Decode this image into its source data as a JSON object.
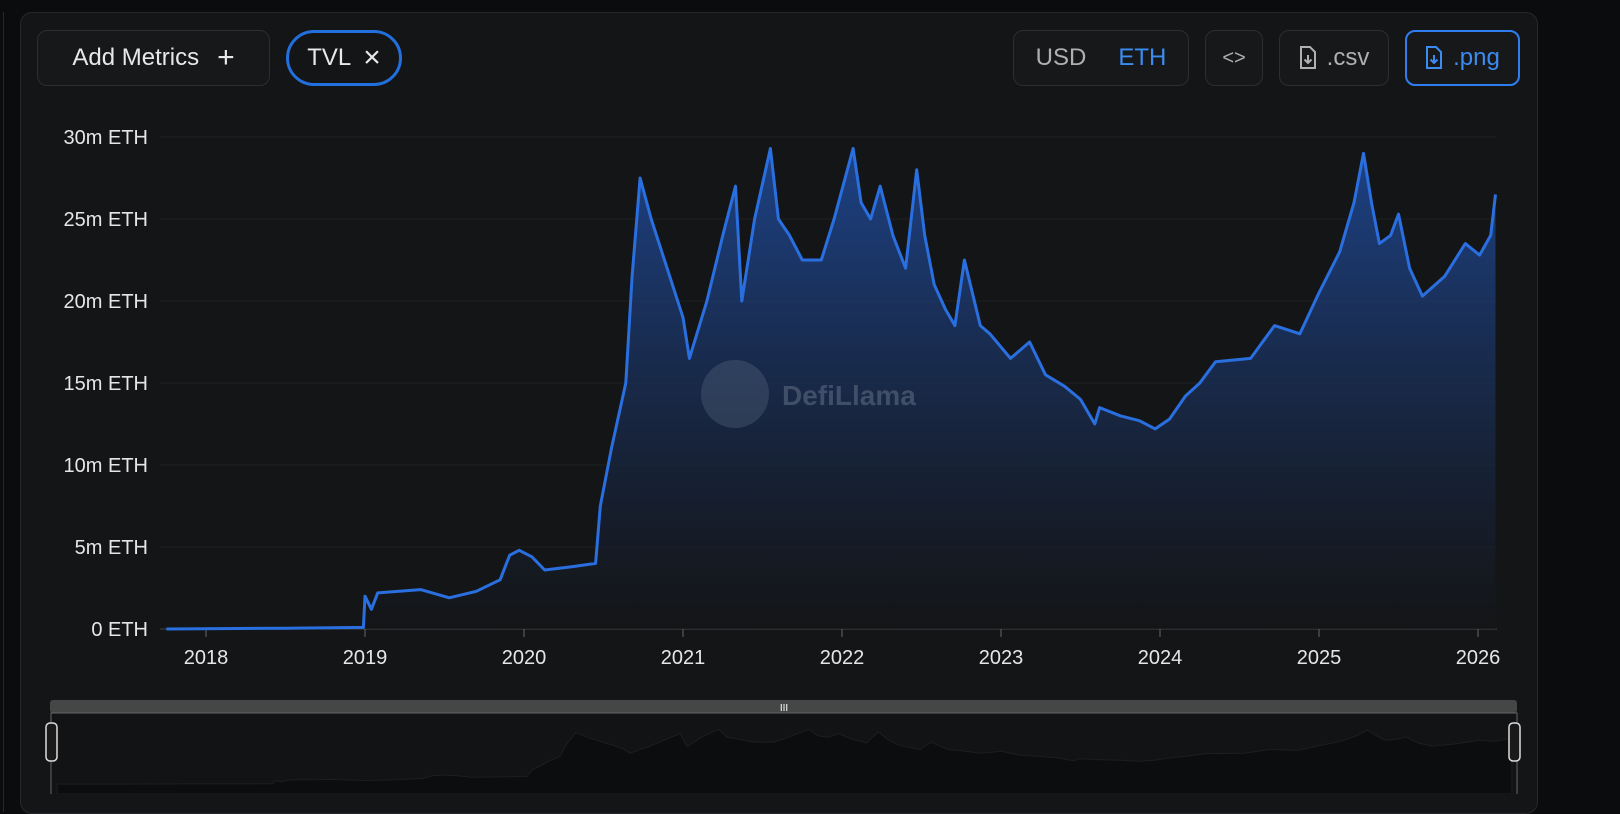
{
  "toolbar": {
    "add_metrics_label": "Add Metrics",
    "add_icon": "+",
    "metric_chip_label": "TVL",
    "remove_icon": "×",
    "currency_options": [
      "USD",
      "ETH"
    ],
    "currency_selected": "ETH",
    "embed_icon": "<>",
    "csv_label": ".csv",
    "png_label": ".png"
  },
  "watermark": "DefiLlama",
  "colors": {
    "accent": "#2170de",
    "line": "#2a6fe0",
    "background": "#141517"
  },
  "chart_data": {
    "type": "area",
    "title": "",
    "series": [
      {
        "name": "TVL",
        "unit": "m ETH",
        "points": [
          [
            2017.75,
            0
          ],
          [
            2018.5,
            0.05
          ],
          [
            2018.99,
            0.1
          ],
          [
            2019.0,
            2.0
          ],
          [
            2019.04,
            1.2
          ],
          [
            2019.08,
            2.2
          ],
          [
            2019.35,
            2.4
          ],
          [
            2019.53,
            1.9
          ],
          [
            2019.7,
            2.3
          ],
          [
            2019.85,
            3.0
          ],
          [
            2019.91,
            4.5
          ],
          [
            2019.97,
            4.8
          ],
          [
            2020.05,
            4.4
          ],
          [
            2020.13,
            3.6
          ],
          [
            2020.3,
            3.8
          ],
          [
            2020.45,
            4.0
          ],
          [
            2020.48,
            7.5
          ],
          [
            2020.55,
            11
          ],
          [
            2020.64,
            15
          ],
          [
            2020.68,
            21.5
          ],
          [
            2020.73,
            27.5
          ],
          [
            2020.8,
            25
          ],
          [
            2020.9,
            22
          ],
          [
            2021.0,
            19
          ],
          [
            2021.04,
            16.5
          ],
          [
            2021.15,
            20
          ],
          [
            2021.25,
            24
          ],
          [
            2021.33,
            27
          ],
          [
            2021.37,
            20
          ],
          [
            2021.45,
            25
          ],
          [
            2021.55,
            29.3
          ],
          [
            2021.6,
            25
          ],
          [
            2021.67,
            24
          ],
          [
            2021.75,
            22.5
          ],
          [
            2021.87,
            22.5
          ],
          [
            2021.95,
            25
          ],
          [
            2022.07,
            29.3
          ],
          [
            2022.12,
            26
          ],
          [
            2022.18,
            25
          ],
          [
            2022.24,
            27
          ],
          [
            2022.32,
            24
          ],
          [
            2022.4,
            22
          ],
          [
            2022.47,
            28
          ],
          [
            2022.52,
            24
          ],
          [
            2022.58,
            21
          ],
          [
            2022.65,
            19.5
          ],
          [
            2022.71,
            18.5
          ],
          [
            2022.77,
            22.5
          ],
          [
            2022.87,
            18.5
          ],
          [
            2022.93,
            18
          ],
          [
            2023.06,
            16.5
          ],
          [
            2023.18,
            17.5
          ],
          [
            2023.28,
            15.5
          ],
          [
            2023.4,
            14.8
          ],
          [
            2023.5,
            14
          ],
          [
            2023.59,
            12.5
          ],
          [
            2023.62,
            13.5
          ],
          [
            2023.75,
            13
          ],
          [
            2023.87,
            12.7
          ],
          [
            2023.97,
            12.2
          ],
          [
            2024.06,
            12.8
          ],
          [
            2024.16,
            14.2
          ],
          [
            2024.25,
            15
          ],
          [
            2024.35,
            16.3
          ],
          [
            2024.57,
            16.5
          ],
          [
            2024.72,
            18.5
          ],
          [
            2024.88,
            18
          ],
          [
            2025.0,
            20.5
          ],
          [
            2025.13,
            23
          ],
          [
            2025.22,
            26
          ],
          [
            2025.28,
            29
          ],
          [
            2025.33,
            26
          ],
          [
            2025.38,
            23.5
          ],
          [
            2025.45,
            24
          ],
          [
            2025.5,
            25.3
          ],
          [
            2025.57,
            22
          ],
          [
            2025.65,
            20.3
          ],
          [
            2025.79,
            21.5
          ],
          [
            2025.92,
            23.5
          ],
          [
            2026.01,
            22.8
          ],
          [
            2026.08,
            24
          ],
          [
            2026.11,
            26.5
          ]
        ]
      }
    ],
    "xlabel": "",
    "ylabel": "",
    "xticks": [
      "2018",
      "2019",
      "2020",
      "2021",
      "2022",
      "2023",
      "2024",
      "2025",
      "2026"
    ],
    "yticks": [
      "0 ETH",
      "5m ETH",
      "10m ETH",
      "15m ETH",
      "20m ETH",
      "25m ETH",
      "30m ETH"
    ],
    "ylim": [
      0,
      30
    ],
    "xlim": [
      2017.75,
      2026.11
    ],
    "grid": true,
    "legend": "none"
  }
}
